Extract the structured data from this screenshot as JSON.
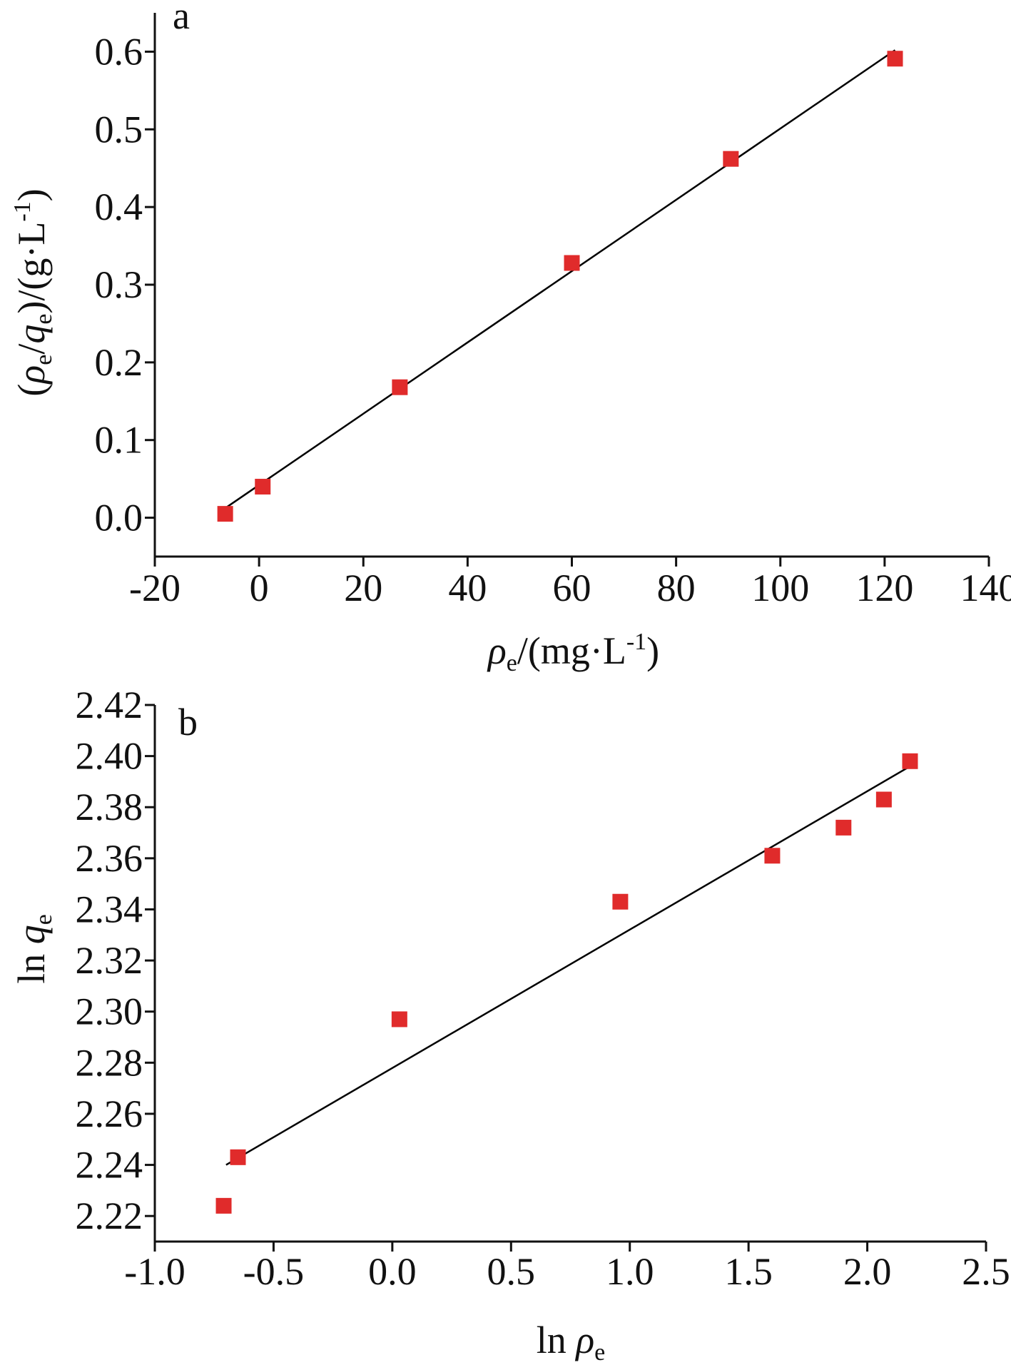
{
  "chart_data": [
    {
      "panel_label": "a",
      "type": "scatter",
      "xlabel": "ρe/(mg·L-1)",
      "ylabel": "(ρe/qe)/(g·L-1)",
      "xlim": [
        -20,
        140
      ],
      "ylim": [
        -0.05,
        0.65
      ],
      "xticks": [
        -20,
        0,
        20,
        40,
        60,
        80,
        100,
        120,
        140
      ],
      "xtick_labels": [
        "-20",
        "0",
        "20",
        "40",
        "60",
        "80",
        "100",
        "120",
        "140"
      ],
      "yticks": [
        0.0,
        0.1,
        0.2,
        0.3,
        0.4,
        0.5,
        0.6
      ],
      "ytick_labels": [
        "0.0",
        "0.1",
        "0.2",
        "0.3",
        "0.4",
        "0.5",
        "0.6"
      ],
      "grid": false,
      "series": [
        {
          "kind": "points",
          "marker": "square",
          "color": "#e02b2b",
          "x": [
            -6.5,
            0.7,
            27,
            60,
            90.5,
            122
          ],
          "y": [
            0.005,
            0.04,
            0.168,
            0.328,
            0.462,
            0.591
          ]
        },
        {
          "kind": "fit-line",
          "color": "#000000",
          "x": [
            -7,
            122
          ],
          "y": [
            0.01,
            0.602
          ]
        }
      ]
    },
    {
      "panel_label": "b",
      "type": "scatter",
      "xlabel": "ln ρe",
      "ylabel": "ln qe",
      "xlim": [
        -1.0,
        2.5
      ],
      "ylim": [
        2.21,
        2.42
      ],
      "xticks": [
        -1.0,
        -0.5,
        0.0,
        0.5,
        1.0,
        1.5,
        2.0,
        2.5
      ],
      "xtick_labels": [
        "-1.0",
        "-0.5",
        "0.0",
        "0.5",
        "1.0",
        "1.5",
        "2.0",
        "2.5"
      ],
      "yticks": [
        2.22,
        2.24,
        2.26,
        2.28,
        2.3,
        2.32,
        2.34,
        2.36,
        2.38,
        2.4,
        2.42
      ],
      "ytick_labels": [
        "2.22",
        "2.24",
        "2.26",
        "2.28",
        "2.30",
        "2.32",
        "2.34",
        "2.36",
        "2.38",
        "2.40",
        "2.42"
      ],
      "grid": false,
      "series": [
        {
          "kind": "points",
          "marker": "square",
          "color": "#e02b2b",
          "x": [
            -0.71,
            -0.65,
            0.03,
            0.96,
            1.6,
            1.9,
            2.07,
            2.18
          ],
          "y": [
            2.224,
            2.243,
            2.297,
            2.343,
            2.361,
            2.372,
            2.383,
            2.398
          ]
        },
        {
          "kind": "fit-line",
          "color": "#000000",
          "x": [
            -0.7,
            2.18
          ],
          "y": [
            2.24,
            2.396
          ]
        }
      ]
    }
  ]
}
